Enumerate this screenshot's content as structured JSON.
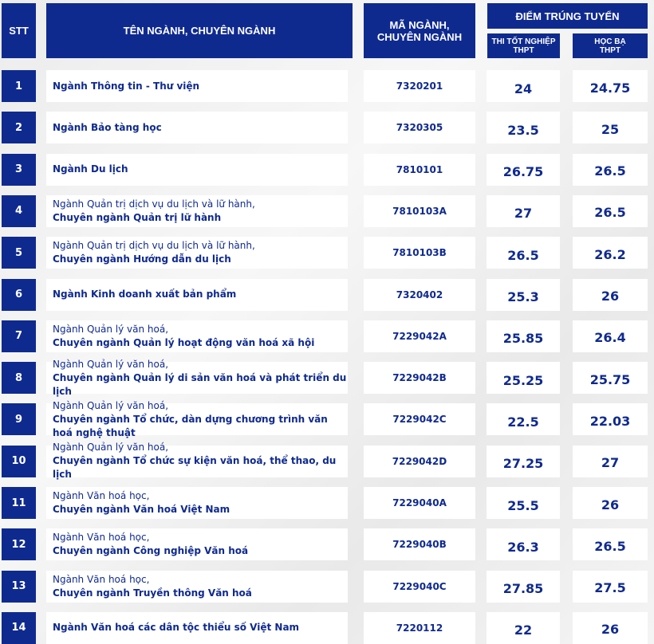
{
  "header": {
    "stt": "STT",
    "name": "TÊN NGÀNH, CHUYÊN NGÀNH",
    "code": "MÃ NGÀNH, CHUYÊN NGÀNH",
    "score": "ĐIỂM TRÚNG TUYỂN",
    "thpt": "THI TỐT NGHIỆP THPT",
    "hocba": "HỌC BẠ THPT"
  },
  "rows": [
    {
      "stt": "1",
      "l1": "",
      "l2": "Ngành Thông tin - Thư viện",
      "code": "7320201",
      "thpt": "24",
      "hocba": "24.75"
    },
    {
      "stt": "2",
      "l1": "",
      "l2": "Ngành Bảo tàng học",
      "code": "7320305",
      "thpt": "23.5",
      "hocba": "25"
    },
    {
      "stt": "3",
      "l1": "",
      "l2": "Ngành Du lịch",
      "code": "7810101",
      "thpt": "26.75",
      "hocba": "26.5"
    },
    {
      "stt": "4",
      "l1": "Ngành Quản trị dịch vụ du lịch và lữ hành,",
      "l2": "Chuyên ngành Quản trị lữ hành",
      "code": "7810103A",
      "thpt": "27",
      "hocba": "26.5"
    },
    {
      "stt": "5",
      "l1": "Ngành Quản trị dịch vụ du lịch và lữ hành,",
      "l2": "Chuyên ngành Hướng dẫn du lịch",
      "code": "7810103B",
      "thpt": "26.5",
      "hocba": "26.2"
    },
    {
      "stt": "6",
      "l1": "",
      "l2": "Ngành Kinh doanh xuất bản phẩm",
      "code": "7320402",
      "thpt": "25.3",
      "hocba": "26"
    },
    {
      "stt": "7",
      "l1": "Ngành Quản lý văn hoá,",
      "l2": "Chuyên ngành Quản lý hoạt động văn hoá xã hội",
      "code": "7229042A",
      "thpt": "25.85",
      "hocba": "26.4"
    },
    {
      "stt": "8",
      "l1": "Ngành Quản lý văn hoá,",
      "l2": "Chuyên ngành Quản lý di sản văn hoá và phát triển du lịch",
      "code": "7229042B",
      "thpt": "25.25",
      "hocba": "25.75"
    },
    {
      "stt": "9",
      "l1": "Ngành Quản lý văn hoá,",
      "l2": "Chuyên ngành Tổ chức, dàn dựng chương trình văn hoá nghệ thuật",
      "code": "7229042C",
      "thpt": "22.5",
      "hocba": "22.03"
    },
    {
      "stt": "10",
      "l1": "Ngành Quản lý văn hoá,",
      "l2": "Chuyên ngành Tổ chức sự kiện văn hoá, thể thao, du lịch",
      "code": "7229042D",
      "thpt": "27.25",
      "hocba": "27"
    },
    {
      "stt": "11",
      "l1": "Ngành Văn hoá học,",
      "l2": "Chuyên ngành Văn hoá Việt Nam",
      "code": "7229040A",
      "thpt": "25.5",
      "hocba": "26"
    },
    {
      "stt": "12",
      "l1": "Ngành Văn hoá học,",
      "l2": "Chuyên ngành Công nghiệp Văn hoá",
      "code": "7229040B",
      "thpt": "26.3",
      "hocba": "26.5"
    },
    {
      "stt": "13",
      "l1": "Ngành Văn hoá học,",
      "l2": "Chuyên ngành Truyền thông Văn hoá",
      "code": "7229040C",
      "thpt": "27.85",
      "hocba": "27.5"
    },
    {
      "stt": "14",
      "l1": "",
      "l2": "Ngành Văn hoá các dân tộc thiểu số Việt Nam",
      "code": "7220112",
      "thpt": "22",
      "hocba": "26"
    }
  ],
  "colors": {
    "primary": "#0f2a8f"
  }
}
